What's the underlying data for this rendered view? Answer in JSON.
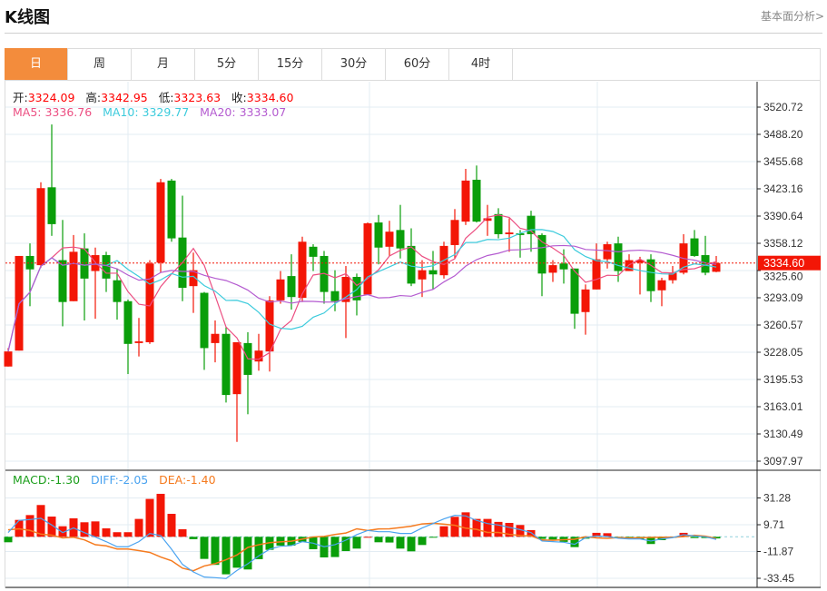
{
  "header": {
    "title": "K线图",
    "link": "基本面分析>"
  },
  "tabs": [
    {
      "label": "日",
      "active": true
    },
    {
      "label": "周"
    },
    {
      "label": "月"
    },
    {
      "label": "5分"
    },
    {
      "label": "15分"
    },
    {
      "label": "30分"
    },
    {
      "label": "60分"
    },
    {
      "label": "4时"
    }
  ],
  "ohlc_info": {
    "open_label": "开:",
    "open": "3324.09",
    "high_label": "高:",
    "high": "3342.95",
    "low_label": "低:",
    "low": "3323.63",
    "close_label": "收:",
    "close": "3334.60"
  },
  "ma_info": {
    "ma5": "MA5: 3336.76",
    "ma10": "MA10: 3329.77",
    "ma20": "MA20: 3333.07"
  },
  "macd_info": {
    "macd": "MACD:-1.30",
    "diff": "DIFF:-2.05",
    "dea": "DEA:-1.40"
  },
  "colors": {
    "up": "#f31606",
    "down": "#0a9e0a",
    "ma5": "#ec4f82",
    "ma10": "#3ccbdc",
    "ma20": "#b45bd0",
    "diff": "#4aa3f0",
    "dea": "#f57a1e",
    "accent": "#f38c3c"
  },
  "chart_data": [
    {
      "type": "candlestick",
      "title": "K线图 日",
      "last_price": "3334.60",
      "y_ticks": [
        "3520.72",
        "3488.20",
        "3455.68",
        "3423.16",
        "3390.64",
        "3358.12",
        "3325.60",
        "3293.09",
        "3260.57",
        "3228.05",
        "3195.53",
        "3163.01",
        "3130.49",
        "3097.97"
      ],
      "ylim": [
        3097.97,
        3520.72
      ],
      "candles": [
        [
          3211,
          3233,
          3211,
          3229
        ],
        [
          3230,
          3343,
          3230,
          3343
        ],
        [
          3343,
          3358,
          3283,
          3327
        ],
        [
          3332,
          3431,
          3329,
          3424
        ],
        [
          3425,
          3500,
          3367,
          3381
        ],
        [
          3338,
          3386,
          3259,
          3288
        ],
        [
          3289,
          3368,
          3289,
          3348
        ],
        [
          3352,
          3370,
          3266,
          3316
        ],
        [
          3325,
          3353,
          3268,
          3344
        ],
        [
          3344,
          3348,
          3300,
          3316
        ],
        [
          3314,
          3328,
          3267,
          3288
        ],
        [
          3289,
          3291,
          3202,
          3238
        ],
        [
          3239,
          3269,
          3223,
          3241
        ],
        [
          3240,
          3338,
          3238,
          3334
        ],
        [
          3335,
          3435,
          3323,
          3431
        ],
        [
          3433,
          3435,
          3360,
          3364
        ],
        [
          3365,
          3415,
          3289,
          3305
        ],
        [
          3307,
          3347,
          3275,
          3326
        ],
        [
          3299,
          3300,
          3207,
          3233
        ],
        [
          3239,
          3266,
          3216,
          3250
        ],
        [
          3250,
          3258,
          3168,
          3177
        ],
        [
          3178,
          3240,
          3121,
          3240
        ],
        [
          3239,
          3252,
          3154,
          3201
        ],
        [
          3217,
          3250,
          3206,
          3230
        ],
        [
          3229,
          3295,
          3205,
          3290
        ],
        [
          3290,
          3325,
          3286,
          3315
        ],
        [
          3319,
          3345,
          3279,
          3294
        ],
        [
          3293,
          3366,
          3288,
          3360
        ],
        [
          3354,
          3357,
          3325,
          3342
        ],
        [
          3343,
          3349,
          3286,
          3300
        ],
        [
          3301,
          3326,
          3277,
          3289
        ],
        [
          3288,
          3331,
          3245,
          3318
        ],
        [
          3318,
          3322,
          3272,
          3290
        ],
        [
          3297,
          3383,
          3297,
          3382
        ],
        [
          3383,
          3392,
          3333,
          3353
        ],
        [
          3354,
          3385,
          3343,
          3372
        ],
        [
          3374,
          3404,
          3340,
          3352
        ],
        [
          3355,
          3376,
          3307,
          3310
        ],
        [
          3315,
          3338,
          3294,
          3326
        ],
        [
          3326,
          3349,
          3303,
          3321
        ],
        [
          3320,
          3360,
          3316,
          3355
        ],
        [
          3356,
          3399,
          3340,
          3386
        ],
        [
          3384,
          3447,
          3380,
          3433
        ],
        [
          3434,
          3451,
          3383,
          3384
        ],
        [
          3385,
          3404,
          3367,
          3388
        ],
        [
          3393,
          3400,
          3364,
          3369
        ],
        [
          3369,
          3388,
          3348,
          3371
        ],
        [
          3370,
          3374,
          3341,
          3368
        ],
        [
          3391,
          3397,
          3348,
          3369
        ],
        [
          3368,
          3370,
          3295,
          3322
        ],
        [
          3323,
          3338,
          3312,
          3332
        ],
        [
          3334,
          3351,
          3310,
          3327
        ],
        [
          3328,
          3328,
          3256,
          3274
        ],
        [
          3276,
          3309,
          3249,
          3303
        ],
        [
          3303,
          3358,
          3303,
          3339
        ],
        [
          3339,
          3360,
          3328,
          3357
        ],
        [
          3358,
          3366,
          3312,
          3325
        ],
        [
          3325,
          3345,
          3325,
          3338
        ],
        [
          3335,
          3342,
          3297,
          3338
        ],
        [
          3339,
          3345,
          3288,
          3301
        ],
        [
          3302,
          3317,
          3283,
          3314
        ],
        [
          3314,
          3331,
          3310,
          3323
        ],
        [
          3323,
          3369,
          3321,
          3358
        ],
        [
          3364,
          3374,
          3342,
          3343
        ],
        [
          3344,
          3367,
          3320,
          3323
        ],
        [
          3324.09,
          3342.95,
          3323.63,
          3334.6
        ]
      ],
      "moving_averages": [
        "MA5",
        "MA10",
        "MA20"
      ]
    },
    {
      "type": "bar+line",
      "title": "MACD",
      "y_ticks": [
        "31.28",
        "9.71",
        "-11.87",
        "-33.45"
      ],
      "macd": [
        -4.4,
        13.6,
        17.5,
        25.6,
        16.3,
        8.5,
        14.9,
        11.7,
        12.4,
        6.8,
        3.7,
        3.7,
        14.4,
        30.5,
        34.6,
        18.5,
        6.1,
        -1.9,
        -17.8,
        -22.6,
        -30.2,
        -24.9,
        -26.3,
        -18.0,
        -10.5,
        -7.1,
        -7.1,
        -4.1,
        -10.0,
        -16.6,
        -16.3,
        -11.5,
        -9.5,
        0,
        -4.4,
        -4.6,
        -9.5,
        -11.7,
        -6.6,
        -0.5,
        8.5,
        16.1,
        19.7,
        14.4,
        14.4,
        12.0,
        11.2,
        9.5,
        5.4,
        -1.7,
        -2.2,
        -4.1,
        -8.3,
        -1.5,
        3.2,
        2.9,
        -1.2,
        -1.5,
        -1.9,
        -5.8,
        -2.7,
        -0.7,
        3.2,
        -1.0,
        -1.0,
        -1.3
      ],
      "diff": [
        3.4,
        13.2,
        13.9,
        14.9,
        9.5,
        3.4,
        7.1,
        3.4,
        -0.2,
        -3.9,
        -8.0,
        -8.0,
        -3.9,
        2.7,
        1.0,
        -10.0,
        -22.2,
        -28.3,
        -32.4,
        -32.9,
        -33.6,
        -27.1,
        -21.7,
        -15.4,
        -10.0,
        -7.6,
        -7.1,
        -3.9,
        -5.1,
        -8.0,
        -6.3,
        -2.7,
        1.7,
        5.1,
        4.1,
        4.1,
        2.7,
        2.7,
        7.1,
        10.7,
        14.4,
        17.3,
        16.8,
        13.2,
        10.7,
        9.5,
        7.6,
        5.8,
        3.4,
        -3.4,
        -3.9,
        -4.4,
        -6.1,
        -0.7,
        0.7,
        0.2,
        -1.2,
        -1.7,
        -1.7,
        -3.4,
        -1.7,
        -0.7,
        1.7,
        0.7,
        0,
        -2.05
      ]
    }
  ]
}
